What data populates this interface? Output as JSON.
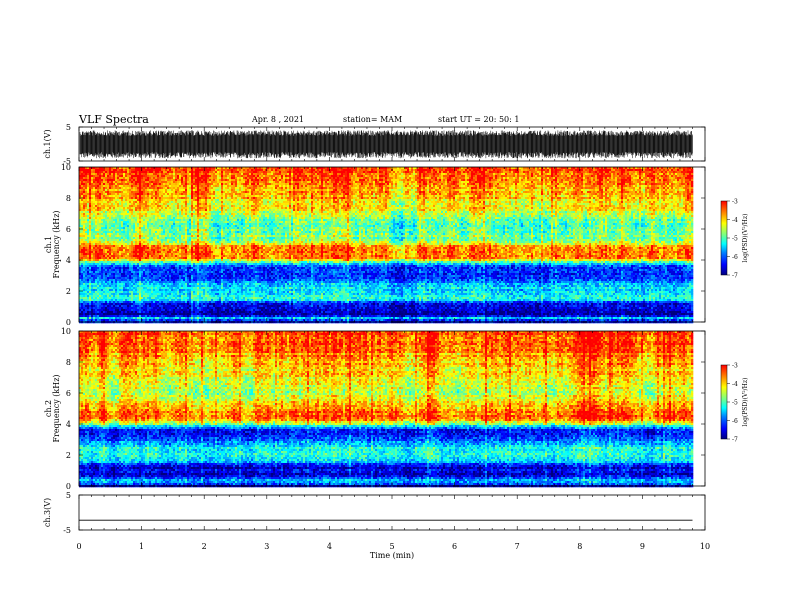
{
  "header": {
    "title": "VLF Spectra",
    "date": "Apr. 8 , 2021",
    "station": "station= MAM",
    "start": "start UT = 20: 50: 1"
  },
  "chart_data": [
    {
      "type": "line",
      "panel": "ch1-waveform",
      "ylabel": "ch.1(V)",
      "ytick_labels": [
        "5",
        "-5"
      ],
      "ylim": [
        -5,
        5
      ],
      "xlim": [
        0,
        10
      ],
      "trace": "noise",
      "band": [
        -4.2,
        4.0
      ],
      "x_end": 9.8
    },
    {
      "type": "heatmap",
      "panel": "ch1-spectrogram",
      "ylabel": "ch.1 Frequency (kHz)",
      "ytick_labels": [
        "0",
        "2",
        "4",
        "6",
        "8",
        "10"
      ],
      "ylim": [
        0,
        10
      ],
      "xlim": [
        0,
        10
      ],
      "x_end": 9.8,
      "z_profile_khz_vs_log": [
        [
          0,
          -6.9
        ],
        [
          0.3,
          -5.5
        ],
        [
          0.5,
          -6.8
        ],
        [
          1.2,
          -6.6
        ],
        [
          1.5,
          -5.2
        ],
        [
          2.0,
          -5.3
        ],
        [
          2.5,
          -5.6
        ],
        [
          3.0,
          -6.2
        ],
        [
          3.6,
          -6.3
        ],
        [
          3.9,
          -5.0
        ],
        [
          4.2,
          -3.5
        ],
        [
          4.8,
          -3.4
        ],
        [
          5.3,
          -4.6
        ],
        [
          6.0,
          -4.9
        ],
        [
          6.8,
          -4.6
        ],
        [
          7.5,
          -4.0
        ],
        [
          8.5,
          -3.7
        ],
        [
          9.3,
          -3.4
        ],
        [
          10,
          -3.2
        ]
      ]
    },
    {
      "type": "heatmap",
      "panel": "ch2-spectrogram",
      "ylabel": "ch.2 Frequency (kHz)",
      "ytick_labels": [
        "0",
        "2",
        "4",
        "6",
        "8",
        "10"
      ],
      "ylim": [
        0,
        10
      ],
      "xlim": [
        0,
        10
      ],
      "x_end": 9.8,
      "z_profile_khz_vs_log": [
        [
          0,
          -6.8
        ],
        [
          0.4,
          -5.6
        ],
        [
          0.8,
          -6.7
        ],
        [
          1.3,
          -6.5
        ],
        [
          1.7,
          -5.3
        ],
        [
          2.2,
          -5.0
        ],
        [
          2.7,
          -5.5
        ],
        [
          3.2,
          -6.3
        ],
        [
          3.7,
          -6.2
        ],
        [
          4.0,
          -4.8
        ],
        [
          4.4,
          -3.4
        ],
        [
          4.9,
          -3.5
        ],
        [
          5.5,
          -4.2
        ],
        [
          6.2,
          -4.4
        ],
        [
          7.0,
          -4.1
        ],
        [
          8.0,
          -3.8
        ],
        [
          9.0,
          -3.4
        ],
        [
          10,
          -3.2
        ]
      ]
    },
    {
      "type": "line",
      "panel": "ch3-waveform",
      "ylabel": "ch.3(V)",
      "ytick_labels": [
        "5",
        "-5"
      ],
      "ylim": [
        -5,
        5
      ],
      "xlim": [
        0,
        10
      ],
      "x": [
        0,
        9.8
      ],
      "y": [
        -2.2,
        -2.2
      ]
    }
  ],
  "xaxis": {
    "label": "Time (min)",
    "tick_labels": [
      "0",
      "1",
      "2",
      "3",
      "4",
      "5",
      "6",
      "7",
      "8",
      "9",
      "10"
    ],
    "lim": [
      0,
      10
    ]
  },
  "colorbars": [
    {
      "tick_labels": [
        "-3",
        "-4",
        "-5",
        "-6",
        "-7"
      ],
      "range": [
        -7,
        -3
      ],
      "label": "log(PSD)(V²/Hz)"
    },
    {
      "tick_labels": [
        "-3",
        "-4",
        "-5",
        "-6",
        "-7"
      ],
      "range": [
        -7,
        -3
      ],
      "label": "log(PSD)(V²/Hz)"
    }
  ],
  "colormap": [
    "#00007f",
    "#0000ff",
    "#007fff",
    "#00ffff",
    "#7fff7f",
    "#ffff00",
    "#ff7f00",
    "#ff0000"
  ]
}
